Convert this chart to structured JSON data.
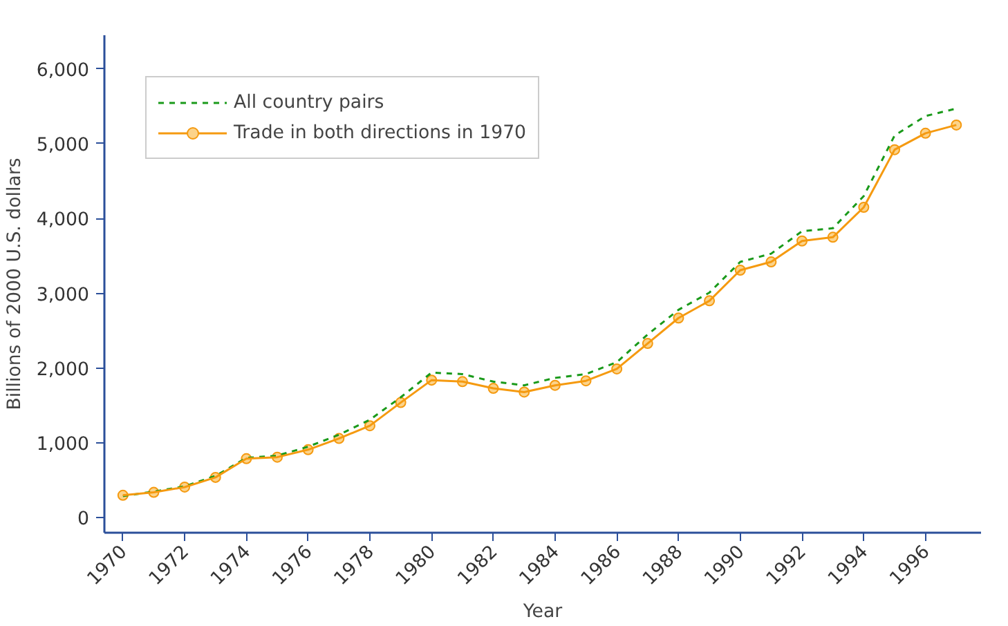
{
  "chart_data": {
    "type": "line",
    "xlabel": "Year",
    "ylabel": "Billions of 2000 U.S. dollars",
    "x": [
      1970,
      1971,
      1972,
      1973,
      1974,
      1975,
      1976,
      1977,
      1978,
      1979,
      1980,
      1981,
      1982,
      1983,
      1984,
      1985,
      1986,
      1987,
      1988,
      1989,
      1990,
      1991,
      1992,
      1993,
      1994,
      1995,
      1996,
      1997
    ],
    "series": [
      {
        "name": "All country pairs",
        "color": "#1a9a1a",
        "line_style": "dashed",
        "marker": "none",
        "values": [
          290,
          350,
          420,
          560,
          800,
          830,
          950,
          1110,
          1310,
          1610,
          1940,
          1920,
          1820,
          1770,
          1870,
          1920,
          2080,
          2450,
          2780,
          3010,
          3420,
          3530,
          3830,
          3870,
          4300,
          5110,
          5370,
          5470
        ]
      },
      {
        "name": "Trade in both directions in 1970",
        "color": "#f59a10",
        "line_style": "solid",
        "marker": "circle",
        "values": [
          300,
          340,
          410,
          540,
          790,
          810,
          910,
          1060,
          1230,
          1540,
          1840,
          1820,
          1730,
          1680,
          1770,
          1830,
          1990,
          2330,
          2670,
          2900,
          3310,
          3420,
          3700,
          3750,
          4150,
          4920,
          5140,
          5250
        ]
      }
    ],
    "xlim": [
      1969.4,
      1997.8
    ],
    "ylim": [
      -200,
      6450
    ],
    "xticks": [
      1970,
      1972,
      1974,
      1976,
      1978,
      1980,
      1982,
      1984,
      1986,
      1988,
      1990,
      1992,
      1994,
      1996
    ],
    "yticks": [
      {
        "value": 0,
        "label": "0"
      },
      {
        "value": 1000,
        "label": "1,000"
      },
      {
        "value": 2000,
        "label": "2,000"
      },
      {
        "value": 3000,
        "label": "3,000"
      },
      {
        "value": 4000,
        "label": "4,000"
      },
      {
        "value": 5000,
        "label": "5,000"
      },
      {
        "value": 6000,
        "label": "6,000"
      }
    ],
    "legend": "top left",
    "grid": false
  }
}
